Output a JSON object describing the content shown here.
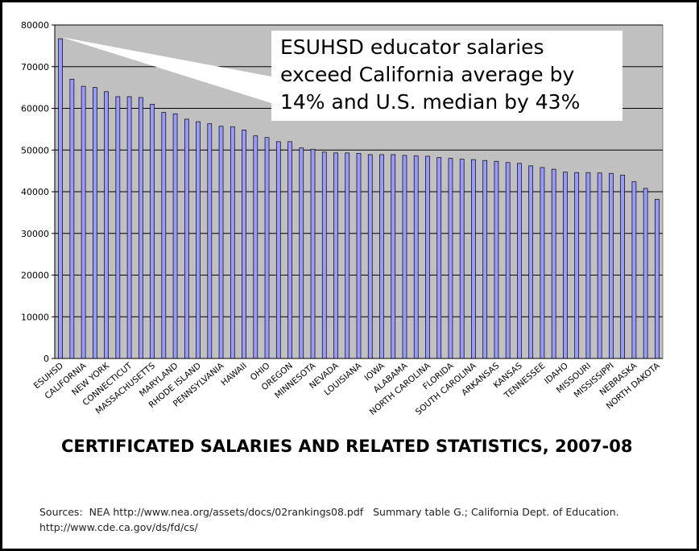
{
  "chart_data": {
    "type": "bar",
    "title": "CERTIFICATED SALARIES AND RELATED STATISTICS, 2007-08",
    "xlabel": "",
    "ylabel": "",
    "ylim": [
      0,
      80000
    ],
    "yticks": [
      "0",
      "10000",
      "20000",
      "30000",
      "40000",
      "50000",
      "60000",
      "70000",
      "80000"
    ],
    "grid": true,
    "legend": "none",
    "bar_color": "#9999ff",
    "callout": "ESUHSD educator salaries exceed California average by 14% and U.S. median by 43%",
    "categories": [
      "ESUHSD",
      "",
      "CALIFORNIA",
      "",
      "NEW YORK",
      "",
      "CONNECTICUT",
      "",
      "MASSACHUSETTS",
      "",
      "MARYLAND",
      "",
      "RHODE ISLAND",
      "",
      "PENNSYLVANIA",
      "",
      "HAWAII",
      "",
      "OHIO",
      "",
      "OREGON",
      "",
      "MINNESOTA",
      "",
      "NEVADA",
      "",
      "LOUISIANA",
      "",
      "IOWA",
      "",
      "ALABAMA",
      "",
      "NORTH CAROLINA",
      "",
      "FLORIDA",
      "",
      "SOUTH CAROLINA",
      "",
      "ARKANSAS",
      "",
      "KANSAS",
      "",
      "TENNESSEE",
      "",
      "IDAHO",
      "",
      "MISSOURI",
      "",
      "MISSISSIPPI",
      "",
      "NEBRASKA",
      "",
      "NORTH DAKOTA"
    ],
    "values": [
      76700,
      67000,
      65300,
      65000,
      64000,
      62800,
      62800,
      62600,
      61000,
      59000,
      58700,
      57400,
      56800,
      56300,
      55700,
      55600,
      54800,
      53400,
      53000,
      52000,
      52000,
      50500,
      50200,
      49500,
      49300,
      49300,
      49200,
      48900,
      48900,
      48900,
      48700,
      48600,
      48500,
      48200,
      48000,
      47800,
      47700,
      47500,
      47300,
      47000,
      46800,
      46200,
      45800,
      45400,
      44700,
      44600,
      44600,
      44500,
      44400,
      44000,
      42400,
      40800,
      38200
    ]
  },
  "sources_line1": "Sources:  NEA http://www.nea.org/assets/docs/02rankings08.pdf   Summary table G.; California Dept. of Education.",
  "sources_line2": "http://www.cde.ca.gov/ds/fd/cs/"
}
